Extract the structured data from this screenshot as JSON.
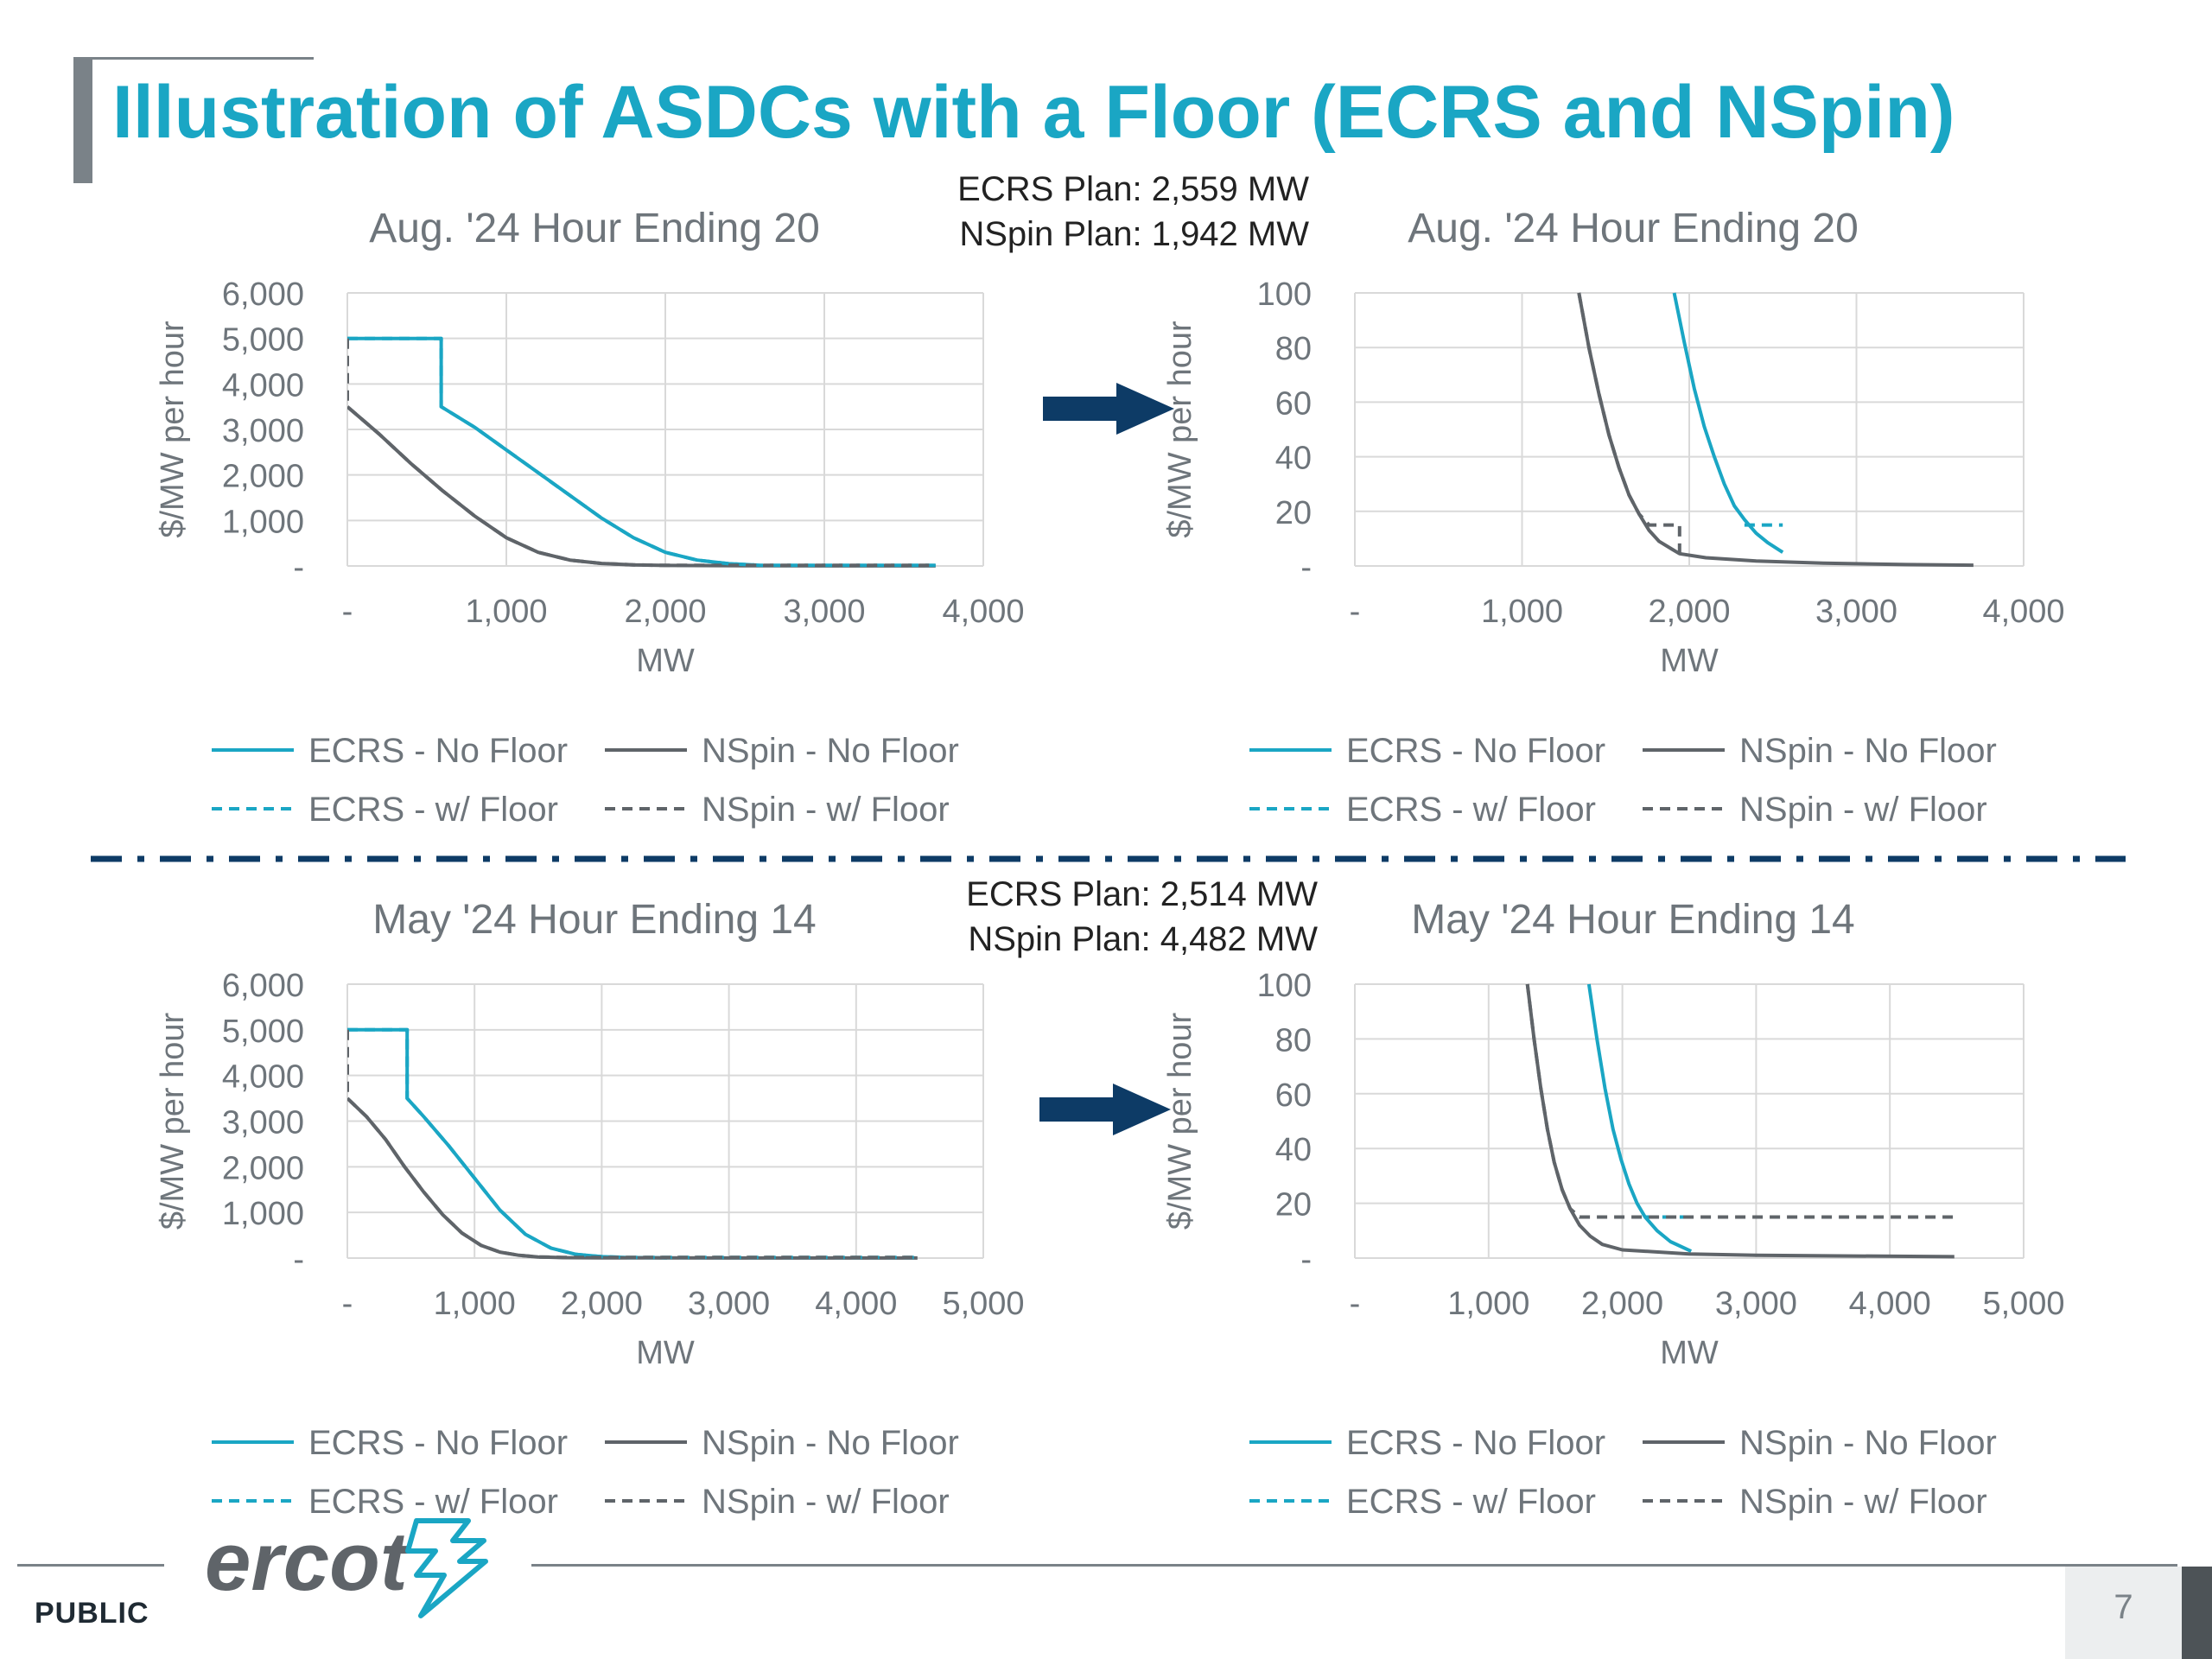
{
  "page": {
    "title": "Illustration of ASDCs with a Floor (ECRS and NSpin)",
    "footer_label": "PUBLIC",
    "page_number": "7",
    "logo_text": "ercot"
  },
  "colors": {
    "title": "#1aa6c4",
    "ecrs": "#1aa6c4",
    "nspin": "#5f6469",
    "arrow": "#0d3b66",
    "divider": "#0d3b66",
    "grid": "#d9d9d9",
    "axis_text": "#6e757b",
    "plan_text": "#222222"
  },
  "icons": {
    "arrow": "right-arrow-icon",
    "logo": "ercot-logo-icon"
  },
  "annotations": [
    {
      "lines": [
        "ECRS Plan: 2,559 MW",
        "NSpin Plan: 1,942 MW"
      ]
    },
    {
      "lines": [
        "ECRS Plan: 2,514 MW",
        "NSpin Plan: 4,482 MW"
      ]
    }
  ],
  "chart_data": [
    {
      "type": "line",
      "title": "Aug. '24 Hour Ending 20",
      "xlabel": "MW",
      "ylabel": "$/MW per hour",
      "xlim": [
        0,
        4000
      ],
      "ylim": [
        0,
        6000
      ],
      "xticks": [
        0,
        1000,
        2000,
        3000,
        4000
      ],
      "xtick_labels": [
        "-",
        "1,000",
        "2,000",
        "3,000",
        "4,000"
      ],
      "yticks": [
        0,
        1000,
        2000,
        3000,
        4000,
        5000,
        6000
      ],
      "ytick_labels": [
        "-",
        "1,000",
        "2,000",
        "3,000",
        "4,000",
        "5,000",
        "6,000"
      ],
      "grid": true,
      "legend_position": "bottom",
      "series": [
        {
          "name": "ECRS - No Floor",
          "dash": false,
          "color": "#1aa6c4",
          "points": [
            [
              0,
              5000
            ],
            [
              590,
              5000
            ],
            [
              590,
              3500
            ],
            [
              800,
              3050
            ],
            [
              1000,
              2550
            ],
            [
              1200,
              2050
            ],
            [
              1400,
              1550
            ],
            [
              1600,
              1050
            ],
            [
              1800,
              620
            ],
            [
              2000,
              300
            ],
            [
              2200,
              130
            ],
            [
              2400,
              50
            ],
            [
              2559,
              20
            ]
          ]
        },
        {
          "name": "ECRS - w/ Floor",
          "dash": true,
          "color": "#1aa6c4",
          "points": [
            [
              0,
              5000
            ],
            [
              590,
              5000
            ],
            [
              590,
              3500
            ],
            [
              800,
              3050
            ],
            [
              1000,
              2550
            ],
            [
              1200,
              2050
            ],
            [
              1400,
              1550
            ],
            [
              1600,
              1050
            ],
            [
              1800,
              620
            ],
            [
              2000,
              300
            ],
            [
              2200,
              130
            ],
            [
              2400,
              50
            ],
            [
              2559,
              20
            ],
            [
              2600,
              15
            ],
            [
              3700,
              15
            ]
          ]
        },
        {
          "name": "NSpin - No Floor",
          "dash": false,
          "color": "#5f6469",
          "points": [
            [
              0,
              3500
            ],
            [
              200,
              2900
            ],
            [
              400,
              2250
            ],
            [
              600,
              1650
            ],
            [
              800,
              1100
            ],
            [
              1000,
              620
            ],
            [
              1200,
              300
            ],
            [
              1400,
              130
            ],
            [
              1600,
              55
            ],
            [
              1800,
              25
            ],
            [
              2000,
              12
            ],
            [
              2500,
              5
            ],
            [
              3000,
              2
            ],
            [
              3700,
              1
            ]
          ]
        },
        {
          "name": "NSpin - w/ Floor",
          "dash": true,
          "color": "#5f6469",
          "points": [
            [
              0,
              5000
            ],
            [
              0,
              3500
            ],
            [
              200,
              2900
            ],
            [
              400,
              2250
            ],
            [
              600,
              1650
            ],
            [
              800,
              1100
            ],
            [
              1000,
              620
            ],
            [
              1200,
              300
            ],
            [
              1400,
              130
            ],
            [
              1600,
              55
            ],
            [
              1800,
              25
            ],
            [
              1942,
              15
            ],
            [
              3700,
              15
            ]
          ]
        }
      ]
    },
    {
      "type": "line",
      "title": "Aug. '24 Hour Ending 20",
      "xlabel": "MW",
      "ylabel": "$/MW per hour",
      "xlim": [
        0,
        4000
      ],
      "ylim": [
        0,
        100
      ],
      "xticks": [
        0,
        1000,
        2000,
        3000,
        4000
      ],
      "xtick_labels": [
        "-",
        "1,000",
        "2,000",
        "3,000",
        "4,000"
      ],
      "yticks": [
        0,
        20,
        40,
        60,
        80,
        100
      ],
      "ytick_labels": [
        "-",
        "20",
        "40",
        "60",
        "80",
        "100"
      ],
      "grid": true,
      "legend_position": "bottom",
      "series": [
        {
          "name": "ECRS - No Floor",
          "dash": false,
          "color": "#1aa6c4",
          "points": [
            [
              1910,
              100
            ],
            [
              1970,
              82
            ],
            [
              2030,
              65
            ],
            [
              2090,
              51
            ],
            [
              2150,
              40
            ],
            [
              2210,
              30
            ],
            [
              2270,
              22
            ],
            [
              2330,
              17
            ],
            [
              2400,
              12
            ],
            [
              2470,
              8.5
            ],
            [
              2559,
              5
            ]
          ]
        },
        {
          "name": "ECRS - w/ Floor",
          "dash": true,
          "color": "#1aa6c4",
          "points": [
            [
              2330,
              15
            ],
            [
              2559,
              15
            ]
          ]
        },
        {
          "name": "NSpin - No Floor",
          "dash": false,
          "color": "#5f6469",
          "points": [
            [
              1340,
              100
            ],
            [
              1400,
              80
            ],
            [
              1460,
              63
            ],
            [
              1520,
              48
            ],
            [
              1580,
              36
            ],
            [
              1640,
              26
            ],
            [
              1700,
              19
            ],
            [
              1760,
              13
            ],
            [
              1820,
              9
            ],
            [
              1900,
              6
            ],
            [
              1942,
              4.5
            ],
            [
              2100,
              3
            ],
            [
              2400,
              1.8
            ],
            [
              2800,
              1
            ],
            [
              3300,
              0.5
            ],
            [
              3700,
              0.3
            ]
          ]
        },
        {
          "name": "NSpin - w/ Floor",
          "dash": true,
          "color": "#5f6469",
          "points": [
            [
              1340,
              100
            ],
            [
              1400,
              80
            ],
            [
              1460,
              63
            ],
            [
              1520,
              48
            ],
            [
              1580,
              36
            ],
            [
              1640,
              26
            ],
            [
              1700,
              19
            ],
            [
              1760,
              15
            ],
            [
              1942,
              15
            ],
            [
              1942,
              4.5
            ]
          ]
        }
      ]
    },
    {
      "type": "line",
      "title": "May '24 Hour Ending 14",
      "xlabel": "MW",
      "ylabel": "$/MW per hour",
      "xlim": [
        0,
        5000
      ],
      "ylim": [
        0,
        6000
      ],
      "xticks": [
        0,
        1000,
        2000,
        3000,
        4000,
        5000
      ],
      "xtick_labels": [
        "-",
        "1,000",
        "2,000",
        "3,000",
        "4,000",
        "5,000"
      ],
      "yticks": [
        0,
        1000,
        2000,
        3000,
        4000,
        5000,
        6000
      ],
      "ytick_labels": [
        "-",
        "1,000",
        "2,000",
        "3,000",
        "4,000",
        "5,000",
        "6,000"
      ],
      "grid": true,
      "legend_position": "bottom",
      "series": [
        {
          "name": "ECRS - No Floor",
          "dash": false,
          "color": "#1aa6c4",
          "points": [
            [
              0,
              5000
            ],
            [
              470,
              5000
            ],
            [
              470,
              3500
            ],
            [
              600,
              3100
            ],
            [
              800,
              2450
            ],
            [
              1000,
              1750
            ],
            [
              1200,
              1050
            ],
            [
              1400,
              520
            ],
            [
              1600,
              220
            ],
            [
              1800,
              80
            ],
            [
              2000,
              30
            ],
            [
              2200,
              12
            ],
            [
              2514,
              5
            ]
          ]
        },
        {
          "name": "ECRS - w/ Floor",
          "dash": true,
          "color": "#1aa6c4",
          "points": [
            [
              0,
              5000
            ],
            [
              470,
              5000
            ],
            [
              470,
              3500
            ],
            [
              600,
              3100
            ],
            [
              800,
              2450
            ],
            [
              1000,
              1750
            ],
            [
              1200,
              1050
            ],
            [
              1400,
              520
            ],
            [
              1600,
              220
            ],
            [
              1800,
              80
            ],
            [
              2000,
              30
            ],
            [
              2200,
              15
            ],
            [
              4482,
              15
            ]
          ]
        },
        {
          "name": "NSpin - No Floor",
          "dash": false,
          "color": "#5f6469",
          "points": [
            [
              0,
              3500
            ],
            [
              150,
              3100
            ],
            [
              300,
              2600
            ],
            [
              450,
              2000
            ],
            [
              600,
              1450
            ],
            [
              750,
              950
            ],
            [
              900,
              550
            ],
            [
              1050,
              280
            ],
            [
              1200,
              130
            ],
            [
              1350,
              60
            ],
            [
              1500,
              25
            ],
            [
              1700,
              10
            ],
            [
              2000,
              5
            ],
            [
              3000,
              2
            ],
            [
              4482,
              1
            ]
          ]
        },
        {
          "name": "NSpin - w/ Floor",
          "dash": true,
          "color": "#5f6469",
          "points": [
            [
              0,
              5000
            ],
            [
              0,
              3500
            ],
            [
              150,
              3100
            ],
            [
              300,
              2600
            ],
            [
              450,
              2000
            ],
            [
              600,
              1450
            ],
            [
              750,
              950
            ],
            [
              900,
              550
            ],
            [
              1050,
              280
            ],
            [
              1200,
              130
            ],
            [
              1350,
              60
            ],
            [
              1500,
              25
            ],
            [
              1700,
              15
            ],
            [
              4482,
              15
            ]
          ]
        }
      ]
    },
    {
      "type": "line",
      "title": "May '24 Hour Ending 14",
      "xlabel": "MW",
      "ylabel": "$/MW per hour",
      "xlim": [
        0,
        5000
      ],
      "ylim": [
        0,
        100
      ],
      "xticks": [
        0,
        1000,
        2000,
        3000,
        4000,
        5000
      ],
      "xtick_labels": [
        "-",
        "1,000",
        "2,000",
        "3,000",
        "4,000",
        "5,000"
      ],
      "yticks": [
        0,
        20,
        40,
        60,
        80,
        100
      ],
      "ytick_labels": [
        "-",
        "20",
        "40",
        "60",
        "80",
        "100"
      ],
      "grid": true,
      "legend_position": "bottom",
      "series": [
        {
          "name": "ECRS - No Floor",
          "dash": false,
          "color": "#1aa6c4",
          "points": [
            [
              1750,
              100
            ],
            [
              1810,
              80
            ],
            [
              1870,
              62
            ],
            [
              1930,
              47
            ],
            [
              1990,
              36
            ],
            [
              2050,
              27
            ],
            [
              2110,
              20
            ],
            [
              2170,
              15
            ],
            [
              2260,
              10
            ],
            [
              2360,
              6
            ],
            [
              2514,
              2.5
            ]
          ]
        },
        {
          "name": "ECRS - w/ Floor",
          "dash": true,
          "color": "#1aa6c4",
          "points": [
            [
              2170,
              15
            ],
            [
              2514,
              15
            ]
          ]
        },
        {
          "name": "NSpin - No Floor",
          "dash": false,
          "color": "#5f6469",
          "points": [
            [
              1290,
              100
            ],
            [
              1340,
              80
            ],
            [
              1390,
              62
            ],
            [
              1440,
              47
            ],
            [
              1490,
              35
            ],
            [
              1550,
              25
            ],
            [
              1610,
              18
            ],
            [
              1680,
              12
            ],
            [
              1760,
              8
            ],
            [
              1850,
              5
            ],
            [
              2000,
              3
            ],
            [
              2500,
              1.5
            ],
            [
              3000,
              1
            ],
            [
              4482,
              0.5
            ]
          ]
        },
        {
          "name": "NSpin - w/ Floor",
          "dash": true,
          "color": "#5f6469",
          "points": [
            [
              1290,
              100
            ],
            [
              1340,
              80
            ],
            [
              1390,
              62
            ],
            [
              1440,
              47
            ],
            [
              1490,
              35
            ],
            [
              1550,
              25
            ],
            [
              1610,
              18
            ],
            [
              1680,
              15
            ],
            [
              4482,
              15
            ]
          ]
        }
      ]
    }
  ]
}
